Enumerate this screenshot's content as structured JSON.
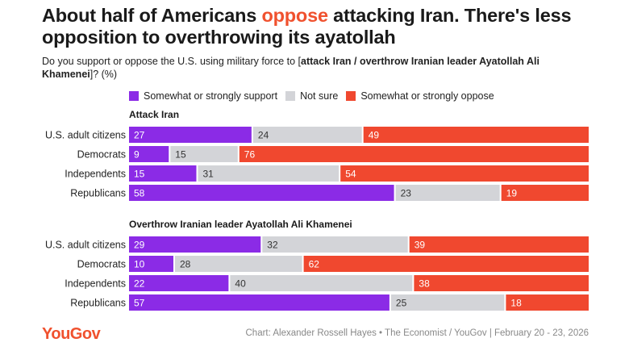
{
  "header": {
    "title_part1": "About half of Americans ",
    "title_highlight": "oppose",
    "title_part2": " attacking Iran. There's less opposition to overthrowing its ayatollah",
    "subtitle_part1": "Do you support or oppose the U.S. using military force to [",
    "subtitle_bold": "attack Iran / overthrow Iranian leader Ayatollah Ali Khamenei",
    "subtitle_part2": "]? (%)"
  },
  "colors": {
    "support": "#8b2be6",
    "not_sure": "#d3d4d8",
    "oppose": "#f0482f",
    "highlight": "#f0512e"
  },
  "chart_data": {
    "type": "bar",
    "orientation": "horizontal",
    "stacked": true,
    "legend": [
      {
        "key": "support",
        "label": "Somewhat or strongly support"
      },
      {
        "key": "not_sure",
        "label": "Not sure"
      },
      {
        "key": "oppose",
        "label": "Somewhat or strongly oppose"
      }
    ],
    "xlim": [
      0,
      100
    ],
    "panels": [
      {
        "title": "Attack Iran",
        "categories": [
          "U.S. adult citizens",
          "Democrats",
          "Independents",
          "Republicans"
        ],
        "series": [
          {
            "name": "Somewhat or strongly support",
            "key": "support",
            "values": [
              27,
              9,
              15,
              58
            ]
          },
          {
            "name": "Not sure",
            "key": "not_sure",
            "values": [
              24,
              15,
              31,
              23
            ]
          },
          {
            "name": "Somewhat or strongly oppose",
            "key": "oppose",
            "values": [
              49,
              76,
              54,
              19
            ]
          }
        ]
      },
      {
        "title": "Overthrow Iranian leader Ayatollah Ali Khamenei",
        "categories": [
          "U.S. adult citizens",
          "Democrats",
          "Independents",
          "Republicans"
        ],
        "series": [
          {
            "name": "Somewhat or strongly support",
            "key": "support",
            "values": [
              29,
              10,
              22,
              57
            ]
          },
          {
            "name": "Not sure",
            "key": "not_sure",
            "values": [
              32,
              28,
              40,
              25
            ]
          },
          {
            "name": "Somewhat or strongly oppose",
            "key": "oppose",
            "values": [
              39,
              62,
              38,
              18
            ]
          }
        ]
      }
    ]
  },
  "footer": {
    "logo": "YouGov",
    "source": "Chart: Alexander Rossell Hayes • The Economist / YouGov | February 20 - 23, 2026"
  }
}
